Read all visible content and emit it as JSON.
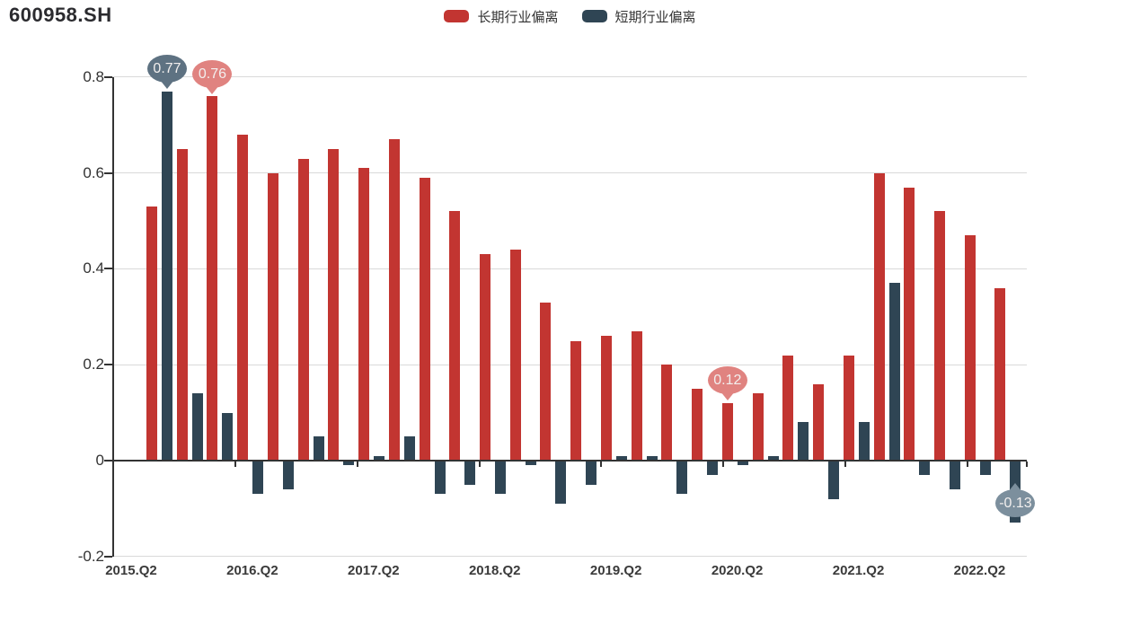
{
  "title": "600958.SH",
  "legend": {
    "items": [
      {
        "label": "长期行业偏离",
        "color": "#c23531"
      },
      {
        "label": "短期行业偏离",
        "color": "#2f4554"
      }
    ]
  },
  "chart_data": {
    "type": "bar",
    "title": "600958.SH",
    "categories": [
      "2015.Q2",
      "2015.Q3",
      "2015.Q4",
      "2016.Q1",
      "2016.Q2",
      "2016.Q3",
      "2016.Q4",
      "2017.Q1",
      "2017.Q2",
      "2017.Q3",
      "2017.Q4",
      "2018.Q1",
      "2018.Q2",
      "2018.Q3",
      "2018.Q4",
      "2019.Q1",
      "2019.Q2",
      "2019.Q3",
      "2019.Q4",
      "2020.Q1",
      "2020.Q2",
      "2020.Q3",
      "2020.Q4",
      "2021.Q1",
      "2021.Q2",
      "2021.Q3",
      "2021.Q4",
      "2022.Q1",
      "2022.Q2"
    ],
    "series": [
      {
        "name": "长期行业偏离",
        "color": "#c23531",
        "values": [
          0.53,
          0.65,
          0.76,
          0.68,
          0.6,
          0.63,
          0.65,
          0.61,
          0.67,
          0.59,
          0.52,
          0.43,
          0.44,
          0.33,
          0.25,
          0.26,
          0.27,
          0.2,
          0.15,
          0.12,
          0.14,
          0.22,
          0.16,
          0.22,
          0.6,
          0.57,
          0.52,
          0.47,
          0.36
        ]
      },
      {
        "name": "短期行业偏离",
        "color": "#2f4554",
        "values": [
          0.77,
          0.14,
          0.1,
          -0.07,
          -0.06,
          0.05,
          -0.01,
          0.01,
          0.05,
          -0.07,
          -0.05,
          -0.07,
          -0.01,
          -0.09,
          -0.05,
          0.01,
          0.01,
          -0.07,
          -0.03,
          -0.01,
          0.01,
          0.08,
          -0.08,
          0.08,
          0.37,
          -0.03,
          -0.06,
          -0.03,
          -0.13
        ]
      }
    ],
    "markers": [
      {
        "series": "短期行业偏离",
        "category": "2015.Q2",
        "value": 0.77,
        "label": "0.77",
        "placement": "above",
        "fill": "#5e7282"
      },
      {
        "series": "长期行业偏离",
        "category": "2015.Q4",
        "value": 0.76,
        "label": "0.76",
        "placement": "above",
        "fill": "#e08380"
      },
      {
        "series": "长期行业偏离",
        "category": "2020.Q1",
        "value": 0.12,
        "label": "0.12",
        "placement": "above",
        "fill": "#e08380"
      },
      {
        "series": "短期行业偏离",
        "category": "2022.Q2",
        "value": -0.13,
        "label": "-0.13",
        "placement": "below",
        "fill": "#7c8f9d"
      }
    ],
    "y_axis": {
      "ticks": [
        0.8,
        0.6,
        0.4,
        0.2,
        0,
        -0.2
      ],
      "range": [
        -0.2,
        0.8
      ]
    },
    "x_axis": {
      "visible_labels": [
        "2015.Q2",
        "2016.Q2",
        "2017.Q2",
        "2018.Q2",
        "2019.Q2",
        "2020.Q2",
        "2021.Q2",
        "2022.Q2"
      ],
      "label_every": 4
    },
    "grid": true,
    "legend_position": "top-center",
    "xlabel": "",
    "ylabel": ""
  }
}
